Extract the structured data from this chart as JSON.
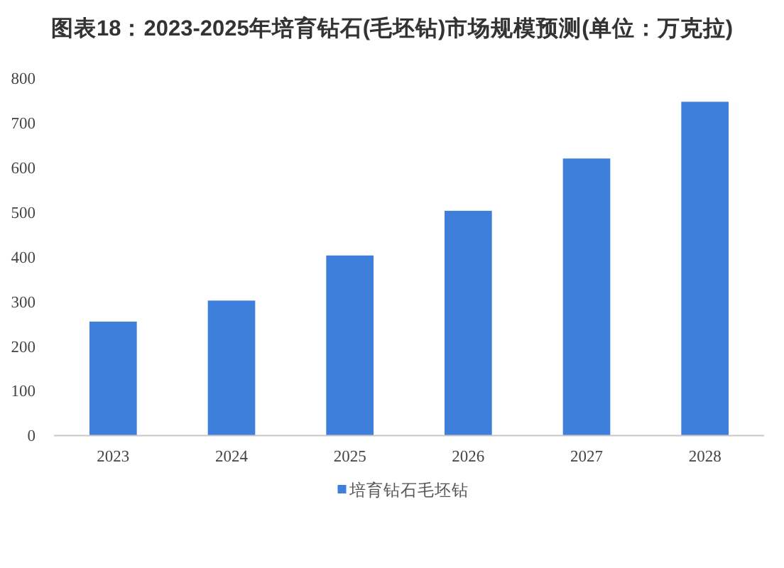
{
  "chart_data": {
    "type": "bar",
    "title": "图表18：2023-2025年培育钻石(毛坯钻)市场规模预测(单位：万克拉)",
    "categories": [
      "2023",
      "2024",
      "2025",
      "2026",
      "2027",
      "2028"
    ],
    "series": [
      {
        "name": "培育钻石毛坯钻",
        "color": "#3d7fdb",
        "values": [
          255,
          302,
          403,
          503,
          620,
          747
        ]
      }
    ],
    "ylim": [
      0,
      800
    ],
    "yticks": [
      0,
      100,
      200,
      300,
      400,
      500,
      600,
      700,
      800
    ],
    "grid": false,
    "legend": "bottom"
  }
}
